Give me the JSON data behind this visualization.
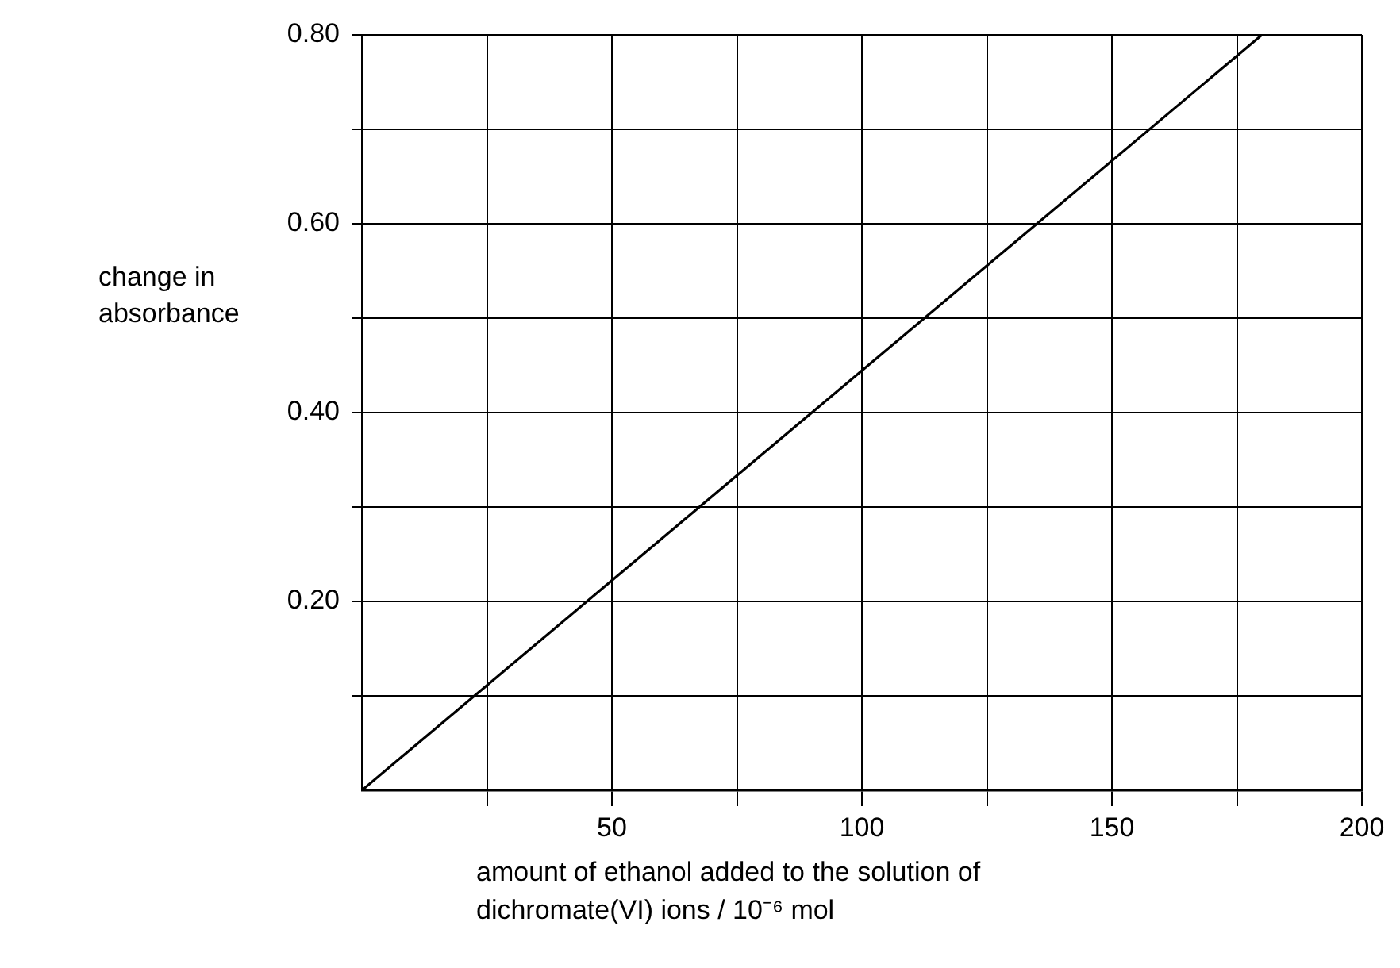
{
  "chart_data": {
    "type": "line",
    "xlabel": "amount of ethanol added to the solution of dichromate(VI) ions / 10⁻⁶ mol",
    "ylabel": "change in absorbance",
    "x": [
      0,
      180
    ],
    "values": [
      0,
      0.8
    ],
    "color": "#000000",
    "marker": "none",
    "xlim": [
      0,
      200
    ],
    "xticks": [
      {
        "value": 25,
        "label": null
      },
      50,
      {
        "value": 75,
        "label": null
      },
      100,
      {
        "value": 125,
        "label": null
      },
      150,
      {
        "value": 175,
        "label": null
      },
      200
    ],
    "ylim": [
      0,
      0.8
    ],
    "yticks": [
      {
        "value": 0.1,
        "label": null
      },
      {
        "value": 0.2,
        "label": "0.20"
      },
      {
        "value": 0.3,
        "label": null
      },
      {
        "value": 0.4,
        "label": "0.40"
      },
      {
        "value": 0.5,
        "label": null
      },
      {
        "value": 0.6,
        "label": "0.60"
      },
      {
        "value": 0.7,
        "label": null
      },
      {
        "value": 0.8,
        "label": "0.80"
      }
    ],
    "grid": true
  }
}
